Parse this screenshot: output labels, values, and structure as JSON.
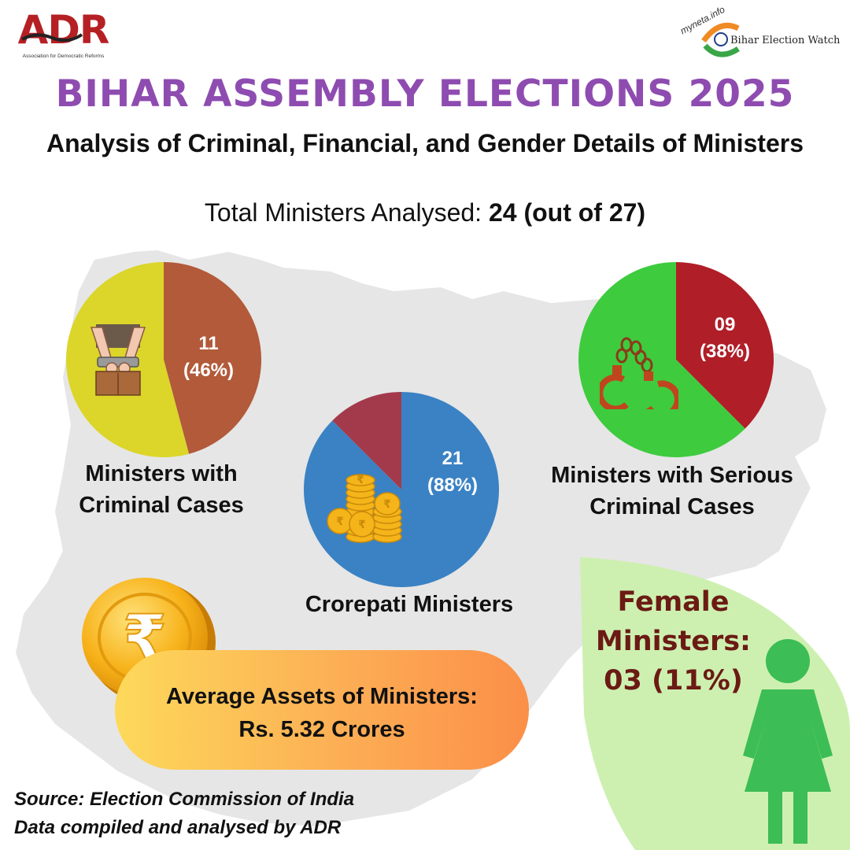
{
  "header": {
    "org_logo_text": "ADR",
    "org_logo_subtitle": "Association for Democratic Reforms",
    "partner_logo_text": "myneta.info",
    "partner_logo_label": "Bihar Election Watch"
  },
  "title": "BIHAR ASSEMBLY ELECTIONS 2025",
  "subtitle": "Analysis of Criminal, Financial, and Gender Details of Ministers",
  "total": {
    "label": "Total Ministers Analysed:",
    "value": "24 (out of 27)"
  },
  "colors": {
    "title": "#8e4cb0",
    "criminal_cases": "#b25a3a",
    "no_criminal_cases": "#dcd52a",
    "serious_cases": "#b01e28",
    "no_serious_cases": "#3ecb3e",
    "crorepati": "#3a82c4",
    "non_crorepati": "#a33a4c",
    "female_panel": "#cdf0b0",
    "female_icon": "#3cbd55",
    "female_text": "#6b1a14"
  },
  "chart_data": [
    {
      "type": "pie",
      "title": "Ministers with Criminal Cases",
      "icon": "handcuffed-hands-icon",
      "slices": [
        {
          "value": 11,
          "percent": 46,
          "label": "11",
          "percent_label": "(46%)",
          "color": "#b25a3a"
        },
        {
          "value": 13,
          "percent": 54,
          "label": "",
          "percent_label": "",
          "color": "#dcd52a"
        }
      ]
    },
    {
      "type": "pie",
      "title": "Crorepati Ministers",
      "icon": "rupee-coin-stack-icon",
      "slices": [
        {
          "value": 21,
          "percent": 88,
          "label": "21",
          "percent_label": "(88%)",
          "color": "#3a82c4"
        },
        {
          "value": 3,
          "percent": 12,
          "label": "",
          "percent_label": "",
          "color": "#a33a4c"
        }
      ]
    },
    {
      "type": "pie",
      "title": "Ministers with Serious Criminal Cases",
      "icon": "handcuffs-icon",
      "slices": [
        {
          "value": 9,
          "percent": 38,
          "label": "09",
          "percent_label": "(38%)",
          "color": "#b01e28"
        },
        {
          "value": 15,
          "percent": 62,
          "label": "",
          "percent_label": "",
          "color": "#3ecb3e"
        }
      ]
    }
  ],
  "avg_assets": {
    "line1": "Average Assets of Ministers:",
    "line2": "Rs. 5.32 Crores"
  },
  "female": {
    "line1": "Female",
    "line2": "Ministers:",
    "line3": "03 (11%)"
  },
  "source": {
    "line1": "Source: Election Commission of India",
    "line2": "Data compiled and analysed by ADR"
  }
}
